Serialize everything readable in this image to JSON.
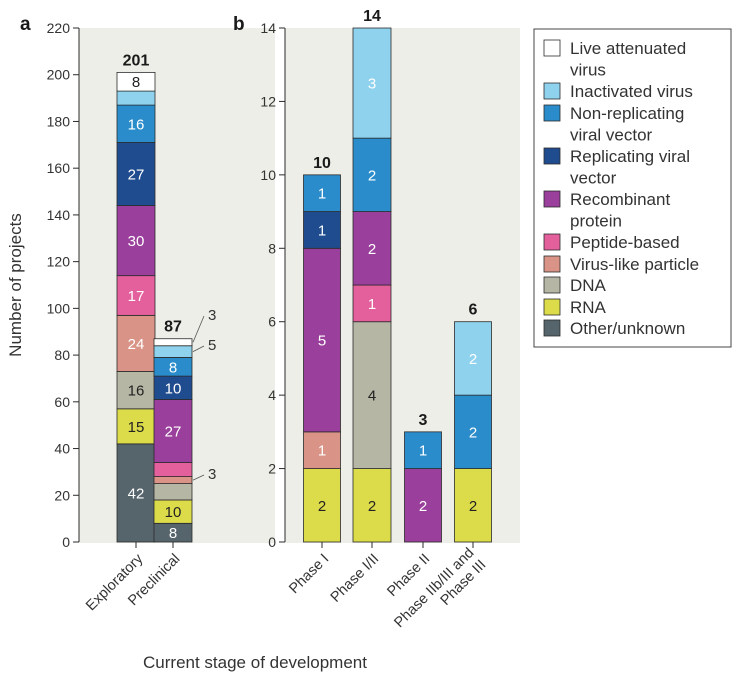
{
  "panels": {
    "a": {
      "letter": "a"
    },
    "b": {
      "letter": "b"
    }
  },
  "ylabel": "Number of projects",
  "xlabel": "Current stage of development",
  "colors": {
    "plot_bg": "#edeee7",
    "bar_stroke": "#2b2b2b",
    "axis": "#2b2b2b"
  },
  "legend": {
    "items": [
      {
        "key": "live",
        "lines": [
          "Live attenuated",
          "virus"
        ],
        "color": "#ffffff"
      },
      {
        "key": "inactivated",
        "lines": [
          "Inactivated virus"
        ],
        "color": "#8fd2ee"
      },
      {
        "key": "nonrep",
        "lines": [
          "Non-replicating",
          "viral vector"
        ],
        "color": "#2a8ccb"
      },
      {
        "key": "rep",
        "lines": [
          "Replicating viral",
          "vector"
        ],
        "color": "#1f4c8f"
      },
      {
        "key": "recomb",
        "lines": [
          "Recombinant",
          "protein"
        ],
        "color": "#9a3f9b"
      },
      {
        "key": "peptide",
        "lines": [
          "Peptide-based"
        ],
        "color": "#e3609c"
      },
      {
        "key": "vlp",
        "lines": [
          "Virus-like particle"
        ],
        "color": "#d99487"
      },
      {
        "key": "dna",
        "lines": [
          "DNA"
        ],
        "color": "#b5b6a4"
      },
      {
        "key": "rna",
        "lines": [
          "RNA"
        ],
        "color": "#dcdc4a"
      },
      {
        "key": "other",
        "lines": [
          "Other/unknown"
        ],
        "color": "#56646b"
      }
    ]
  },
  "chart_data": [
    {
      "type": "bar",
      "stacked": true,
      "panel": "a",
      "ylim": [
        0,
        220
      ],
      "yticks": [
        0,
        20,
        40,
        60,
        80,
        100,
        120,
        140,
        160,
        180,
        200,
        220
      ],
      "categories": [
        "Exploratory",
        "Preclinical"
      ],
      "totals": [
        201,
        87
      ],
      "series": [
        {
          "name": "Other/unknown",
          "key": "other",
          "values": [
            42,
            8
          ]
        },
        {
          "name": "RNA",
          "key": "rna",
          "values": [
            15,
            10
          ]
        },
        {
          "name": "DNA",
          "key": "dna",
          "values": [
            16,
            7
          ]
        },
        {
          "name": "Virus-like particle",
          "key": "vlp",
          "values": [
            24,
            3
          ]
        },
        {
          "name": "Peptide-based",
          "key": "peptide",
          "values": [
            17,
            6
          ]
        },
        {
          "name": "Recombinant protein",
          "key": "recomb",
          "values": [
            30,
            27
          ]
        },
        {
          "name": "Replicating viral vector",
          "key": "rep",
          "values": [
            27,
            10
          ]
        },
        {
          "name": "Non-replicating viral vector",
          "key": "nonrep",
          "values": [
            16,
            8
          ]
        },
        {
          "name": "Inactivated virus",
          "key": "inactivated",
          "values": [
            6,
            5
          ]
        },
        {
          "name": "Live attenuated virus",
          "key": "live",
          "values": [
            8,
            3
          ]
        }
      ]
    },
    {
      "type": "bar",
      "stacked": true,
      "panel": "b",
      "ylim": [
        0,
        14
      ],
      "yticks": [
        0,
        2,
        4,
        6,
        8,
        10,
        12,
        14
      ],
      "categories": [
        [
          "Phase I"
        ],
        [
          "Phase I/II"
        ],
        [
          "Phase II"
        ],
        [
          "Phase IIb/III and",
          "Phase III"
        ]
      ],
      "totals": [
        10,
        14,
        3,
        6
      ],
      "series": [
        {
          "name": "RNA",
          "key": "rna",
          "values": [
            2,
            2,
            0,
            2
          ]
        },
        {
          "name": "Virus-like particle",
          "key": "vlp",
          "values": [
            1,
            0,
            0,
            0
          ]
        },
        {
          "name": "DNA",
          "key": "dna",
          "values": [
            0,
            4,
            0,
            0
          ]
        },
        {
          "name": "Peptide-based",
          "key": "peptide",
          "values": [
            0,
            1,
            0,
            0
          ]
        },
        {
          "name": "Recombinant protein",
          "key": "recomb",
          "values": [
            5,
            2,
            2,
            0
          ]
        },
        {
          "name": "Replicating viral vector",
          "key": "rep",
          "values": [
            1,
            0,
            0,
            0
          ]
        },
        {
          "name": "Non-replicating viral vector",
          "key": "nonrep",
          "values": [
            1,
            2,
            1,
            2
          ]
        },
        {
          "name": "Inactivated virus",
          "key": "inactivated",
          "values": [
            0,
            3,
            0,
            2
          ]
        }
      ]
    }
  ]
}
